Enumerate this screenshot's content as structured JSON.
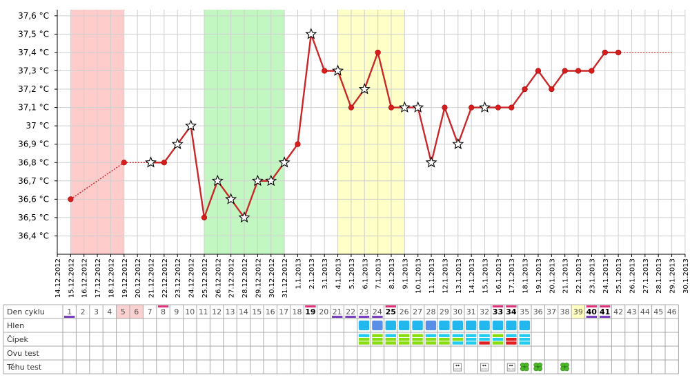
{
  "chart_data": {
    "type": "line",
    "title": "",
    "xlabel": "",
    "ylabel": "",
    "y_unit": "°C",
    "ylim": [
      36.3,
      37.65
    ],
    "y_ticks": [
      36.4,
      36.5,
      36.6,
      36.7,
      36.8,
      36.9,
      37.0,
      37.1,
      37.2,
      37.3,
      37.4,
      37.5,
      37.6
    ],
    "y_tick_labels": [
      "36,4 °C",
      "36,5 °C",
      "36,6 °C",
      "36,7 °C",
      "36,8 °C",
      "36,9 °C",
      "37 °C",
      "37,1 °C",
      "37,2 °C",
      "37,3 °C",
      "37,4 °C",
      "37,5 °C",
      "37,6 °C"
    ],
    "x_labels": [
      "14.12.2012",
      "15.12.2012",
      "16.12.2012",
      "17.12.2012",
      "18.12.2012",
      "19.12.2012",
      "20.12.2012",
      "21.12.2012",
      "22.12.2012",
      "23.12.2012",
      "24.12.2012",
      "25.12.2012",
      "26.12.2012",
      "27.12.2012",
      "28.12.2012",
      "29.12.2012",
      "30.12.2012",
      "31.12.2012",
      "1.1.2013",
      "2.1.2013",
      "3.1.2013",
      "4.1.2013",
      "5.1.2013",
      "6.1.2013",
      "7.1.2013",
      "8.1.2013",
      "9.1.2013",
      "10.1.2013",
      "11.1.2013",
      "12.1.2013",
      "13.1.2013",
      "14.1.2013",
      "15.1.2013",
      "16.1.2013",
      "17.1.2013",
      "18.1.2013",
      "19.1.2013",
      "20.1.2013",
      "21.1.2013",
      "22.1.2013",
      "23.1.2013",
      "24.1.2013",
      "25.1.2013",
      "26.1.2013",
      "27.1.2013",
      "28.1.2013",
      "29.1.2013",
      "30.1.2013"
    ],
    "bands": [
      {
        "from_day": 1,
        "to_day": 5,
        "color": "#ffcccc"
      },
      {
        "from_day": 11,
        "to_day": 17,
        "color": "#c2f7c2"
      },
      {
        "from_day": 21,
        "to_day": 26,
        "color": "#ffffc8"
      }
    ],
    "series": [
      {
        "name": "",
        "color": "#c8282a",
        "points": [
          {
            "day": 1,
            "temp": 36.6,
            "marker": "dot"
          },
          {
            "day": 5,
            "temp": 36.8,
            "marker": "dot",
            "dashed_from_prev": true
          },
          {
            "day": 7,
            "temp": 36.8,
            "marker": "star",
            "dashed_from_prev": true
          },
          {
            "day": 8,
            "temp": 36.8,
            "marker": "dot"
          },
          {
            "day": 9,
            "temp": 36.9,
            "marker": "star"
          },
          {
            "day": 10,
            "temp": 37.0,
            "marker": "star"
          },
          {
            "day": 11,
            "temp": 36.5,
            "marker": "dot"
          },
          {
            "day": 12,
            "temp": 36.7,
            "marker": "star"
          },
          {
            "day": 13,
            "temp": 36.6,
            "marker": "star"
          },
          {
            "day": 14,
            "temp": 36.5,
            "marker": "star"
          },
          {
            "day": 15,
            "temp": 36.7,
            "marker": "star"
          },
          {
            "day": 16,
            "temp": 36.7,
            "marker": "star"
          },
          {
            "day": 17,
            "temp": 36.8,
            "marker": "star"
          },
          {
            "day": 18,
            "temp": 36.9,
            "marker": "dot"
          },
          {
            "day": 19,
            "temp": 37.5,
            "marker": "star"
          },
          {
            "day": 20,
            "temp": 37.3,
            "marker": "dot"
          },
          {
            "day": 21,
            "temp": 37.3,
            "marker": "star"
          },
          {
            "day": 22,
            "temp": 37.1,
            "marker": "dot"
          },
          {
            "day": 23,
            "temp": 37.2,
            "marker": "star"
          },
          {
            "day": 24,
            "temp": 37.4,
            "marker": "dot"
          },
          {
            "day": 25,
            "temp": 37.1,
            "marker": "dot"
          },
          {
            "day": 26,
            "temp": 37.1,
            "marker": "star"
          },
          {
            "day": 27,
            "temp": 37.1,
            "marker": "star"
          },
          {
            "day": 28,
            "temp": 36.8,
            "marker": "star"
          },
          {
            "day": 29,
            "temp": 37.1,
            "marker": "dot"
          },
          {
            "day": 30,
            "temp": 36.9,
            "marker": "star"
          },
          {
            "day": 31,
            "temp": 37.1,
            "marker": "dot"
          },
          {
            "day": 32,
            "temp": 37.1,
            "marker": "star"
          },
          {
            "day": 33,
            "temp": 37.1,
            "marker": "dot"
          },
          {
            "day": 34,
            "temp": 37.1,
            "marker": "dot"
          },
          {
            "day": 35,
            "temp": 37.2,
            "marker": "dot"
          },
          {
            "day": 36,
            "temp": 37.3,
            "marker": "dot"
          },
          {
            "day": 37,
            "temp": 37.2,
            "marker": "dot"
          },
          {
            "day": 38,
            "temp": 37.3,
            "marker": "dot"
          },
          {
            "day": 39,
            "temp": 37.3,
            "marker": "dot"
          },
          {
            "day": 40,
            "temp": 37.3,
            "marker": "dot"
          },
          {
            "day": 41,
            "temp": 37.4,
            "marker": "dot"
          },
          {
            "day": 42,
            "temp": 37.4,
            "marker": "dot"
          }
        ],
        "trailing_dotted": {
          "from_day": 42,
          "to_day": 46,
          "temp": 37.4
        }
      }
    ]
  },
  "table": {
    "row_labels": [
      "Den cyklu",
      "Hlen",
      "Čípek",
      "Ovu test",
      "Těhu test"
    ],
    "cycle_days": [
      "1",
      "2",
      "3",
      "4",
      "5",
      "6",
      "7",
      "8",
      "9",
      "10",
      "11",
      "12",
      "13",
      "14",
      "15",
      "16",
      "17",
      "18",
      "19",
      "20",
      "21",
      "22",
      "23",
      "24",
      "25",
      "26",
      "27",
      "28",
      "29",
      "30",
      "31",
      "32",
      "33",
      "34",
      "35",
      "36",
      "37",
      "38",
      "39",
      "40",
      "41",
      "42",
      "43",
      "44",
      "45",
      "46"
    ],
    "bold_days": [
      19,
      25,
      33,
      34,
      40,
      41
    ],
    "pink_cell_days": [
      5,
      6
    ],
    "yellow_cell_days": [
      39
    ],
    "top_magenta_days": [
      8,
      19,
      25,
      33,
      34,
      40,
      41
    ],
    "bottom_purple_days": [
      1,
      21,
      22,
      23,
      24,
      40,
      41
    ],
    "hlen_days": {
      "light": [
        23,
        25,
        26,
        27,
        29,
        30,
        31,
        32,
        33,
        34,
        35
      ],
      "dark": [
        24,
        28
      ]
    },
    "cipek": [
      {
        "day": 23,
        "top": "#22ccee",
        "mid": "#88dd11",
        "bottom": "#88dd11"
      },
      {
        "day": 24,
        "top": "#88dd11",
        "mid": "#88dd11",
        "bottom": "#88dd11"
      },
      {
        "day": 25,
        "top": "#22ccee",
        "mid": "#88dd11",
        "bottom": "#88dd11"
      },
      {
        "day": 26,
        "top": "#88dd11",
        "mid": "#88dd11",
        "bottom": "#88dd11"
      },
      {
        "day": 27,
        "top": "#88dd11",
        "mid": "#88dd11",
        "bottom": "#88dd11"
      },
      {
        "day": 28,
        "top": "#22ccee",
        "mid": "#88dd11",
        "bottom": "#88dd11"
      },
      {
        "day": 29,
        "top": "#22ccee",
        "mid": "#88dd11",
        "bottom": "#88dd11"
      },
      {
        "day": 30,
        "top": "#22ccee",
        "mid": "#88dd11",
        "bottom": "#22ccee"
      },
      {
        "day": 31,
        "top": "#22ccee",
        "mid": "#22ccee",
        "bottom": "#22ccee"
      },
      {
        "day": 32,
        "top": "#22ccee",
        "mid": "#22ccee",
        "bottom": "#e02020"
      },
      {
        "day": 33,
        "top": "#88dd11",
        "mid": "#22ccee",
        "bottom": "#88dd11"
      },
      {
        "day": 34,
        "top": "#22ccee",
        "mid": "#e02020",
        "bottom": "#e02020"
      },
      {
        "day": 35,
        "top": "#22ccee",
        "mid": "#22ccee",
        "bottom": "#22ccee"
      }
    ],
    "tehu_test": {
      "stick": [
        30,
        32,
        34
      ],
      "clover": [
        35,
        36,
        38
      ]
    }
  }
}
